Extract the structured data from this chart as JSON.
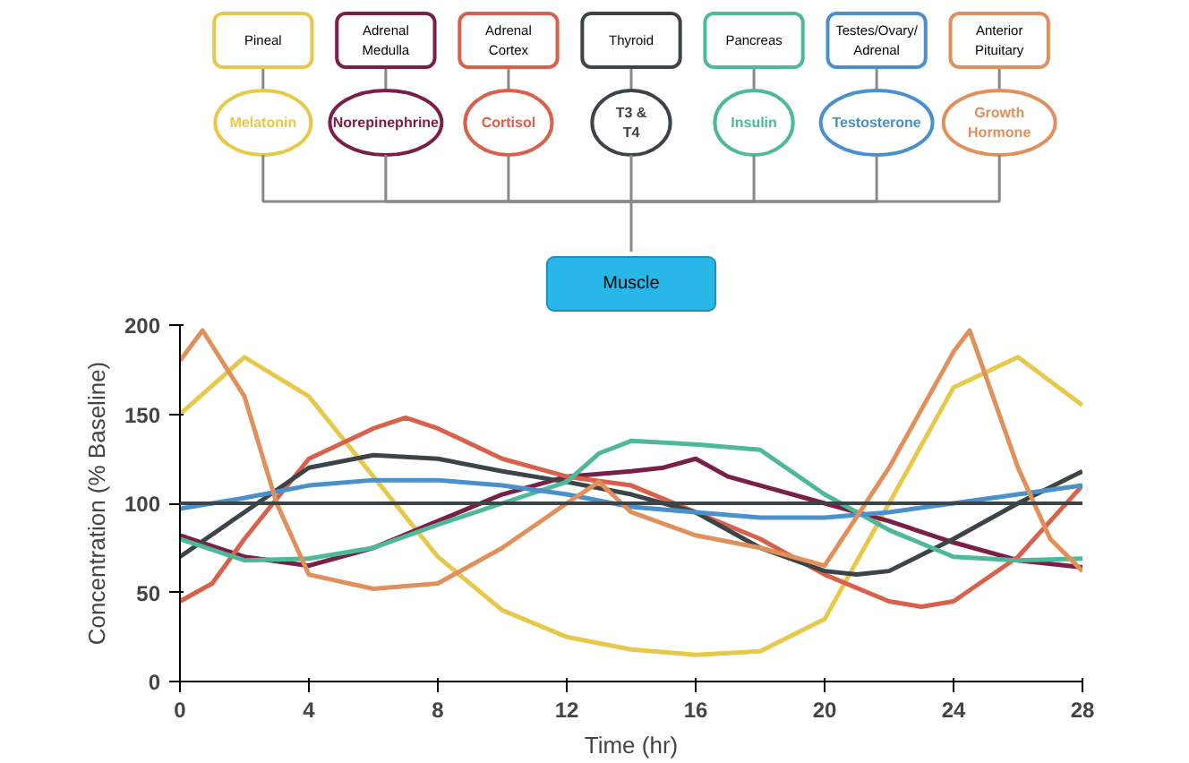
{
  "chart_data": {
    "type": "line",
    "xlabel": "Time (hr)",
    "ylabel": "Concentration (% Baseline)",
    "xlim": [
      0,
      28
    ],
    "xticks": [
      0,
      4,
      8,
      12,
      16,
      20,
      24,
      28
    ],
    "ylim": [
      0,
      200
    ],
    "yticks": [
      0,
      50,
      100,
      150,
      200
    ],
    "grid": false,
    "legend": "top",
    "annotations": [
      "Pineal",
      "Adrenal Medulla",
      "Adrenal Cortex",
      "Thyroid",
      "Pancreas",
      "Testes/Ovary/ Adrenal",
      "Anterior Pituitary",
      "Muscle"
    ],
    "ref_lines": [
      {
        "axis": "y",
        "value": 100,
        "color": "#3c4448"
      }
    ],
    "x": [
      0,
      2,
      4,
      6,
      8,
      10,
      12,
      14,
      16,
      18,
      20,
      22,
      24,
      26,
      28
    ],
    "series": [
      {
        "name": "Melatonin",
        "color": "#e8c84a",
        "values": [
          150,
          182,
          160,
          115,
          70,
          40,
          25,
          18,
          15,
          17,
          35,
          100,
          165,
          182,
          155
        ]
      },
      {
        "name": "Norepinephrine",
        "color": "#7a2048",
        "x": [
          0,
          2,
          4,
          6,
          8,
          10,
          12,
          14,
          15,
          16,
          17,
          18,
          20,
          22,
          24,
          26,
          28
        ],
        "values": [
          82,
          70,
          65,
          75,
          90,
          105,
          115,
          118,
          120,
          125,
          115,
          110,
          100,
          90,
          78,
          68,
          64
        ]
      },
      {
        "name": "Cortisol",
        "color": "#d9604a",
        "x": [
          0,
          1,
          2,
          4,
          6,
          7,
          8,
          10,
          12,
          14,
          16,
          18,
          20,
          22,
          23,
          24,
          26,
          28
        ],
        "values": [
          45,
          55,
          80,
          125,
          142,
          148,
          142,
          125,
          115,
          110,
          95,
          80,
          60,
          45,
          42,
          45,
          70,
          110
        ]
      },
      {
        "name": "T3 & T4",
        "color": "#3c4448",
        "x": [
          0,
          2,
          4,
          6,
          8,
          10,
          12,
          14,
          16,
          18,
          20,
          21,
          22,
          24,
          26,
          28
        ],
        "values": [
          70,
          95,
          120,
          127,
          125,
          118,
          112,
          105,
          95,
          75,
          62,
          60,
          62,
          80,
          100,
          118
        ]
      },
      {
        "name": "Insulin",
        "color": "#4db89a",
        "x": [
          0,
          2,
          4,
          6,
          8,
          10,
          12,
          13,
          14,
          16,
          18,
          20,
          22,
          24,
          26,
          28
        ],
        "values": [
          80,
          68,
          69,
          75,
          88,
          100,
          112,
          128,
          135,
          133,
          130,
          105,
          85,
          70,
          68,
          69
        ]
      },
      {
        "name": "Testosterone",
        "color": "#4a90cc",
        "values": [
          97,
          103,
          110,
          113,
          113,
          110,
          105,
          98,
          95,
          92,
          92,
          95,
          100,
          105,
          110
        ]
      },
      {
        "name": "Growth Hormone",
        "color": "#e0905a",
        "x": [
          0,
          0.7,
          2,
          3,
          4,
          6,
          8,
          10,
          12,
          13,
          14,
          16,
          18,
          20,
          22,
          24,
          24.5,
          26,
          27,
          28
        ],
        "values": [
          180,
          197,
          160,
          100,
          60,
          52,
          55,
          75,
          100,
          112,
          95,
          82,
          75,
          65,
          120,
          185,
          197,
          120,
          80,
          62
        ]
      }
    ]
  }
}
